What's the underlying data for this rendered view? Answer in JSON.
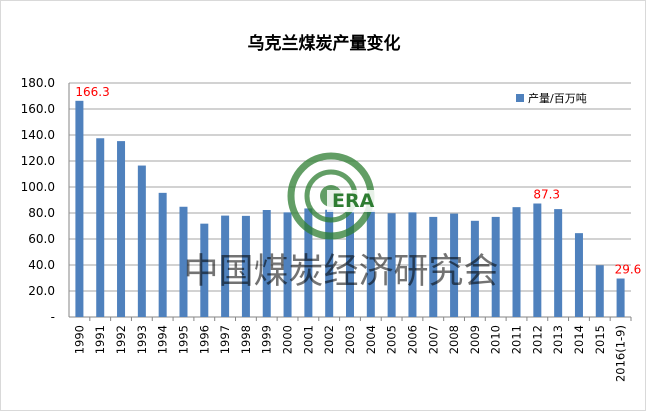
{
  "chart_data": {
    "type": "bar",
    "title": "乌克兰煤炭产量变化",
    "categories": [
      "1990",
      "1991",
      "1992",
      "1993",
      "1994",
      "1995",
      "1996",
      "1997",
      "1998",
      "1999",
      "2000",
      "2001",
      "2002",
      "2003",
      "2004",
      "2005",
      "2006",
      "2007",
      "2008",
      "2009",
      "2010",
      "2011",
      "2012",
      "2013",
      "2014",
      "2015",
      "2016(1-9)"
    ],
    "series": [
      {
        "name": "产量/百万吨",
        "color": "#4f81bd",
        "values": [
          166.3,
          137.5,
          135.3,
          116.5,
          95.5,
          84.8,
          71.8,
          78.0,
          77.8,
          82.3,
          80.5,
          83.5,
          82.5,
          80.5,
          82.0,
          79.8,
          80.5,
          77.0,
          79.5,
          74.0,
          77.0,
          84.5,
          87.3,
          83.0,
          64.5,
          39.8,
          29.6
        ]
      }
    ],
    "data_labels": [
      {
        "category": "1990",
        "text": "166.3"
      },
      {
        "category": "2012",
        "text": "87.3"
      },
      {
        "category": "2016(1-9)",
        "text": "29.6"
      }
    ],
    "y_ticks": [
      "-",
      "20.0",
      "40.0",
      "60.0",
      "80.0",
      "100.0",
      "120.0",
      "140.0",
      "160.0",
      "180.0"
    ],
    "ylim": [
      0,
      180
    ],
    "grid": true,
    "legend": "top-right"
  },
  "watermark": {
    "text": "中国煤炭经济研究会",
    "logo_text": "ERA",
    "logo_color": "#2e7d32"
  }
}
